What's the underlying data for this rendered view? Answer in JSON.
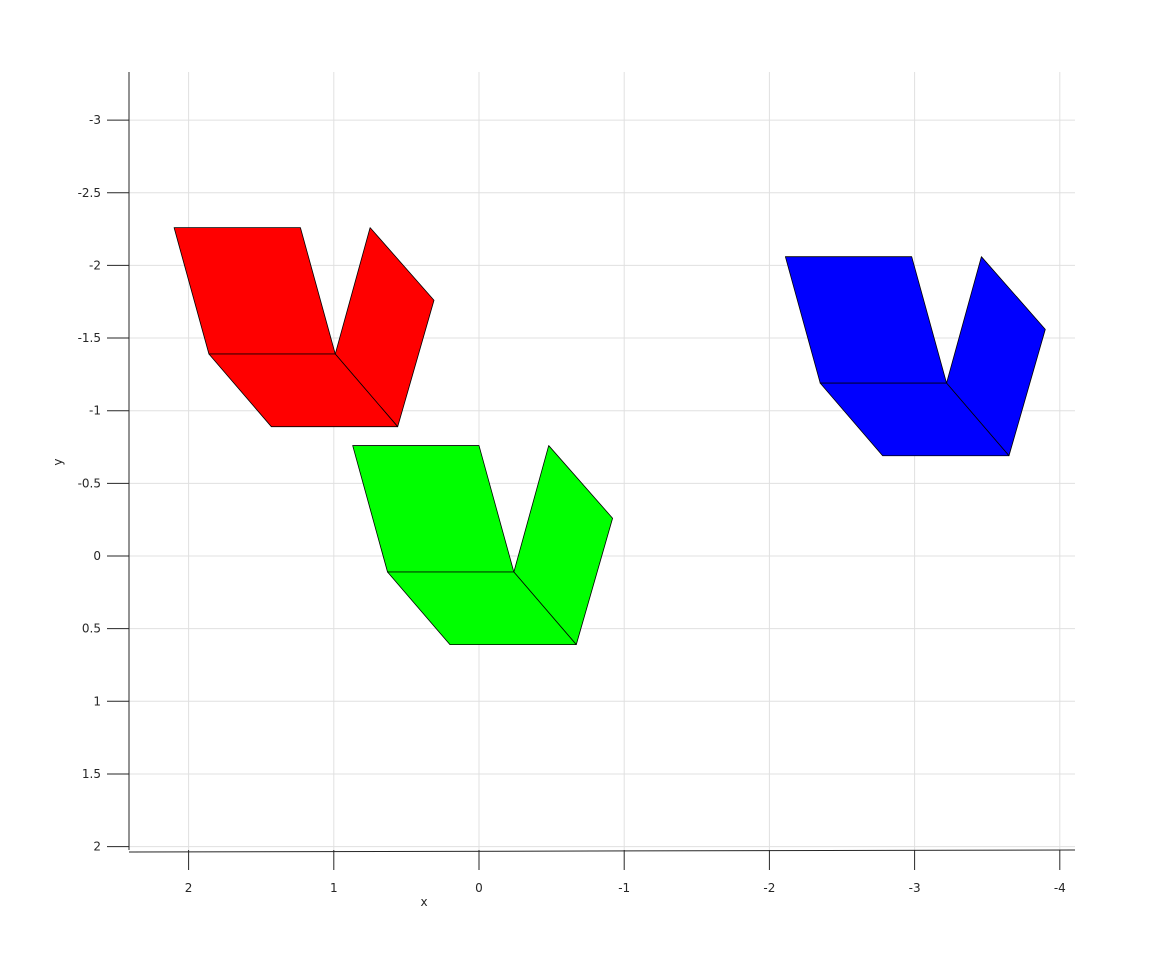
{
  "chart_data": {
    "type": "3d-patch",
    "title": "",
    "xlabel": "x",
    "ylabel": "y",
    "xlim": [
      2.4,
      -4.1
    ],
    "ylim": [
      -3.3,
      2.05
    ],
    "x_direction": "reversed",
    "y_direction": "reversed",
    "grid": true,
    "xticks": [
      2,
      1,
      0,
      -1,
      -2,
      -3,
      -4
    ],
    "xtick_labels": [
      "2",
      "1",
      "0",
      "-1",
      "-2",
      "-3",
      "-4"
    ],
    "yticks": [
      -3,
      -2.5,
      -2,
      -1.5,
      -1,
      -0.5,
      0,
      0.5,
      1,
      1.5,
      2
    ],
    "ytick_labels": [
      "-3",
      "-2.5",
      "-2",
      "-1.5",
      "-1",
      "-0.5",
      "0",
      "0.5",
      "1",
      "1.5",
      "2"
    ],
    "cube_shape": [
      {
        "face": "front",
        "vertices": [
          [
            0.0,
            0.0
          ],
          [
            0.87,
            0.0
          ],
          [
            0.63,
            -0.87
          ],
          [
            -0.24,
            -0.87
          ]
        ]
      },
      {
        "face": "side",
        "vertices": [
          [
            0.87,
            0.0
          ],
          [
            1.3,
            0.5
          ],
          [
            1.55,
            -0.37
          ],
          [
            1.11,
            -0.87
          ]
        ]
      },
      {
        "face": "bottom",
        "vertices": [
          [
            0.0,
            0.0
          ],
          [
            0.87,
            0.0
          ],
          [
            1.3,
            0.5
          ],
          [
            0.43,
            0.5
          ]
        ]
      }
    ],
    "series": [
      {
        "name": "red cube",
        "color": "#ff0000",
        "anchor": [
          1.86,
          -1.39
        ]
      },
      {
        "name": "green cube",
        "color": "#00ff00",
        "anchor": [
          0.63,
          0.11
        ]
      },
      {
        "name": "blue cube",
        "color": "#0000ff",
        "anchor": [
          -2.35,
          -1.19
        ]
      }
    ]
  }
}
